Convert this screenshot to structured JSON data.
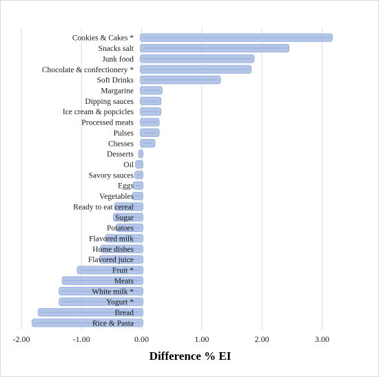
{
  "chart_data": {
    "type": "bar",
    "orientation": "horizontal",
    "title": "",
    "xlabel": "Difference % EI",
    "ylabel": "",
    "xlim": [
      -2.0,
      3.5
    ],
    "xticks": [
      -2.0,
      -1.0,
      0.0,
      1.0,
      2.0,
      3.0
    ],
    "xtick_labels": [
      "-2.00",
      "-1.00",
      "0.00",
      "1.00",
      "2.00",
      "3.00"
    ],
    "grid": "vertical",
    "legend": "none",
    "bar_color": "#b4c6e7",
    "bar_edge_color": "#8faadc",
    "grid_color": "#d9d9d9",
    "categories": [
      "Cookies & Cakes *",
      "Snacks salt",
      "Junk food",
      "Chocolate & confectionery *",
      "Soft Drinks",
      "Margarine",
      "Dipping sauces",
      "Ice cream & popcicles",
      "Processed meats",
      "Pulses",
      "Chesses",
      "Desserts",
      "Oil",
      "Savory sauces",
      "Eggs",
      "Vegetables",
      "Ready to eat cereal",
      "Sugar",
      "Potatoes",
      "Flavored milk",
      "Home dishes",
      "Flavored juice",
      "Fruit *",
      "Meats",
      "White milk *",
      "Yogurt *",
      "Bread",
      "Rice & Pasta"
    ],
    "values": [
      3.15,
      2.43,
      1.85,
      1.8,
      1.29,
      0.32,
      0.3,
      0.3,
      0.27,
      0.27,
      0.2,
      -0.03,
      -0.08,
      -0.09,
      -0.12,
      -0.13,
      -0.43,
      -0.45,
      -0.4,
      -0.58,
      -0.66,
      -0.68,
      -1.05,
      -1.3,
      -1.35,
      -1.35,
      -1.7,
      -1.8
    ]
  }
}
